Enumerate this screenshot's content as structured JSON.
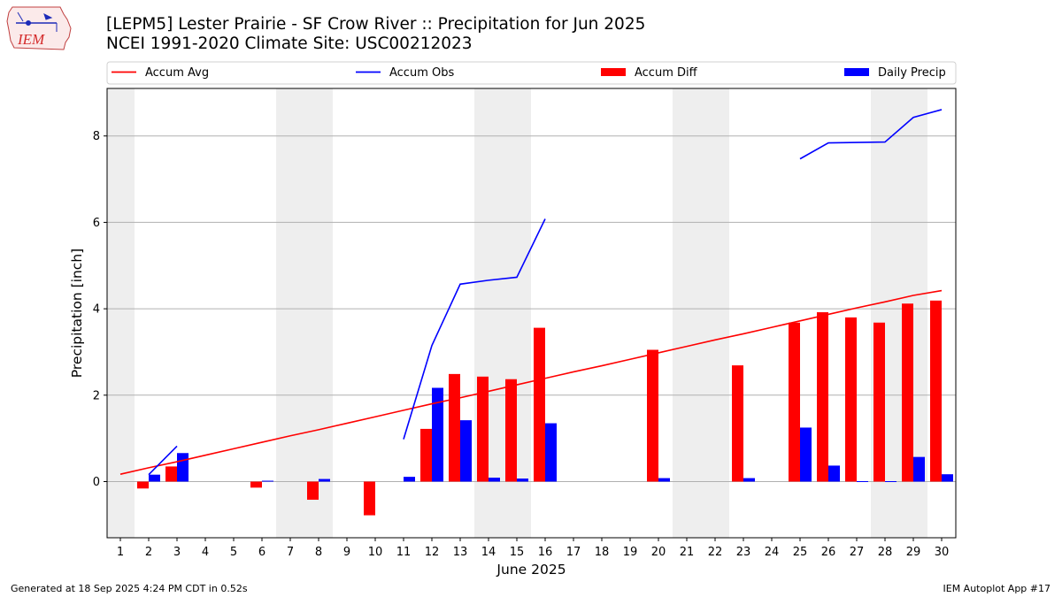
{
  "header": {
    "title_line1": "[LEPM5] Lester Prairie - SF Crow River :: Precipitation for Jun 2025",
    "title_line2": "NCEI 1991-2020 Climate Site: USC00212023"
  },
  "logo": {
    "text": "IEM"
  },
  "footer": {
    "generated": "Generated at 18 Sep 2025 4:24 PM CDT in 0.52s",
    "app": "IEM Autoplot App #17"
  },
  "colors": {
    "avg": "#ff0000",
    "obs": "#0000ff",
    "diff": "#ff0000",
    "daily": "#0000ff",
    "weekend": "#eeeeee",
    "grid": "#b0b0b0"
  },
  "chart_data": {
    "type": "bar",
    "title": "[LEPM5] Lester Prairie - SF Crow River :: Precipitation for Jun 2025",
    "xlabel": "June 2025",
    "ylabel": "Precipitation [inch]",
    "xlim": [
      0.5,
      31
    ],
    "ylim": [
      -1.3,
      9.1
    ],
    "yticks": [
      0,
      2,
      4,
      6,
      8
    ],
    "grid": "y",
    "legend_position": "top",
    "legend": [
      "Accum Avg",
      "Accum Obs",
      "Accum Diff",
      "Daily Precip"
    ],
    "days": [
      1,
      2,
      3,
      4,
      5,
      6,
      7,
      8,
      9,
      10,
      11,
      12,
      13,
      14,
      15,
      16,
      17,
      18,
      19,
      20,
      21,
      22,
      23,
      24,
      25,
      26,
      27,
      28,
      29,
      30
    ],
    "weekend_days": [
      1,
      7,
      8,
      14,
      15,
      21,
      22,
      28,
      29
    ],
    "series": [
      {
        "name": "Accum Avg",
        "kind": "line",
        "values": [
          0.17,
          0.32,
          0.46,
          0.61,
          0.76,
          0.91,
          1.06,
          1.2,
          1.35,
          1.5,
          1.65,
          1.8,
          1.94,
          2.09,
          2.24,
          2.39,
          2.54,
          2.68,
          2.83,
          2.98,
          3.13,
          3.28,
          3.42,
          3.57,
          3.72,
          3.87,
          4.02,
          4.16,
          4.31,
          4.42
        ]
      },
      {
        "name": "Accum Obs",
        "kind": "line",
        "values": [
          null,
          0.16,
          0.82,
          null,
          null,
          null,
          null,
          null,
          null,
          null,
          0.98,
          3.15,
          4.57,
          4.66,
          4.73,
          6.08,
          null,
          null,
          null,
          null,
          null,
          null,
          null,
          null,
          7.47,
          7.84,
          7.85,
          7.86,
          8.43,
          8.61
        ]
      },
      {
        "name": "Accum Diff",
        "kind": "bar",
        "values": [
          0,
          -0.16,
          0.35,
          0,
          0,
          -0.14,
          0,
          -0.42,
          0,
          -0.78,
          0,
          1.22,
          2.49,
          2.43,
          2.37,
          3.56,
          0,
          0,
          0,
          3.05,
          0,
          0,
          2.69,
          0,
          3.68,
          3.92,
          3.8,
          3.68,
          4.12,
          4.19
        ]
      },
      {
        "name": "Daily Precip",
        "kind": "bar",
        "values": [
          0,
          0.16,
          0.66,
          0,
          0,
          0.02,
          0,
          0.06,
          0,
          0,
          0.11,
          2.17,
          1.42,
          0.09,
          0.07,
          1.35,
          0,
          0,
          0,
          0.08,
          0,
          0,
          0.08,
          0,
          1.25,
          0.37,
          0.01,
          0.01,
          0.57,
          0.17
        ]
      }
    ]
  }
}
